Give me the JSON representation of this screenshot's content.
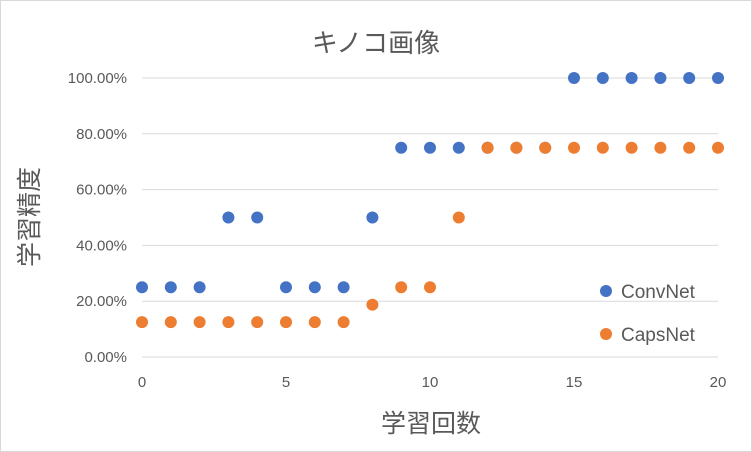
{
  "chart_data": {
    "type": "scatter",
    "title": "キノコ画像",
    "xlabel": "学習回数",
    "ylabel": "学習精度",
    "xlim": [
      0,
      20
    ],
    "ylim": [
      0,
      1
    ],
    "x_ticks": [
      "0",
      "5",
      "10",
      "15",
      "20"
    ],
    "x_tick_values": [
      0,
      5,
      10,
      15,
      20
    ],
    "y_ticks": [
      "0.00%",
      "20.00%",
      "40.00%",
      "60.00%",
      "80.00%",
      "100.00%"
    ],
    "y_tick_values": [
      0,
      0.2,
      0.4,
      0.6,
      0.8,
      1.0
    ],
    "grid": "horizontal",
    "legend_position": "bottom-right",
    "series": [
      {
        "name": "ConvNet",
        "color": "#4472C4",
        "x": [
          0,
          1,
          2,
          3,
          4,
          5,
          6,
          7,
          8,
          9,
          10,
          11,
          12,
          13,
          14,
          15,
          16,
          17,
          18,
          19,
          20
        ],
        "y": [
          0.25,
          0.25,
          0.25,
          0.5,
          0.5,
          0.25,
          0.25,
          0.25,
          0.5,
          0.75,
          0.75,
          0.75,
          0.75,
          0.75,
          0.75,
          1.0,
          1.0,
          1.0,
          1.0,
          1.0,
          1.0
        ]
      },
      {
        "name": "CapsNet",
        "color": "#ED7D31",
        "x": [
          0,
          1,
          2,
          3,
          4,
          5,
          6,
          7,
          8,
          9,
          10,
          11,
          12,
          13,
          14,
          15,
          16,
          17,
          18,
          19,
          20
        ],
        "y": [
          0.125,
          0.125,
          0.125,
          0.125,
          0.125,
          0.125,
          0.125,
          0.125,
          0.1875,
          0.25,
          0.25,
          0.5,
          0.75,
          0.75,
          0.75,
          0.75,
          0.75,
          0.75,
          0.75,
          0.75,
          0.75
        ]
      }
    ]
  }
}
